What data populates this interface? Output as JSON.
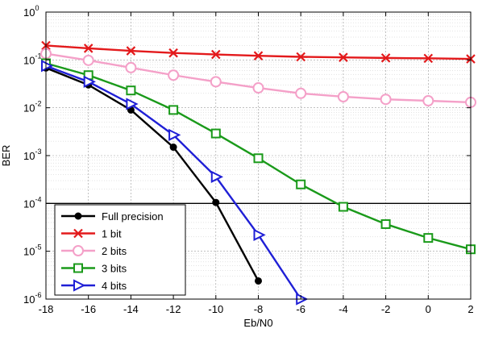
{
  "chart_data": {
    "type": "line",
    "xlabel": "Eb/N0",
    "ylabel": "BER",
    "xlim": [
      -18,
      2
    ],
    "ylim": [
      1e-06,
      1
    ],
    "yscale": "log",
    "x_ticks": [
      -18,
      -16,
      -14,
      -12,
      -10,
      -8,
      -6,
      -4,
      -2,
      0,
      2
    ],
    "y_ticks": [
      {
        "base": "10",
        "exp": "0"
      },
      {
        "base": "10",
        "exp": "-1"
      },
      {
        "base": "10",
        "exp": "-2"
      },
      {
        "base": "10",
        "exp": "-3"
      },
      {
        "base": "10",
        "exp": "-4"
      },
      {
        "base": "10",
        "exp": "-5"
      },
      {
        "base": "10",
        "exp": "-6"
      }
    ],
    "grid": true,
    "legend_position": "bottom-left",
    "reference_line": {
      "y": 0.0001,
      "color": "#000000"
    },
    "series": [
      {
        "name": "Full precision",
        "color": "#000000",
        "marker": "filled-circle",
        "x": [
          -18,
          -16,
          -14,
          -12,
          -10,
          -8
        ],
        "y": [
          0.068,
          0.03,
          0.009,
          0.0015,
          0.000105,
          2.4e-06
        ]
      },
      {
        "name": "1 bit",
        "color": "#e31a1c",
        "marker": "x",
        "x": [
          -18,
          -16,
          -14,
          -12,
          -10,
          -8,
          -6,
          -4,
          -2,
          0,
          2
        ],
        "y": [
          0.2,
          0.175,
          0.155,
          0.14,
          0.13,
          0.122,
          0.116,
          0.113,
          0.11,
          0.108,
          0.105
        ]
      },
      {
        "name": "2 bits",
        "color": "#f4a0c8",
        "marker": "open-circle",
        "x": [
          -18,
          -16,
          -14,
          -12,
          -10,
          -8,
          -6,
          -4,
          -2,
          0,
          2
        ],
        "y": [
          0.135,
          0.098,
          0.069,
          0.048,
          0.035,
          0.026,
          0.02,
          0.017,
          0.015,
          0.014,
          0.013
        ]
      },
      {
        "name": "3 bits",
        "color": "#1a9a1a",
        "marker": "open-square",
        "x": [
          -18,
          -16,
          -14,
          -12,
          -10,
          -8,
          -6,
          -4,
          -2,
          0,
          2
        ],
        "y": [
          0.085,
          0.048,
          0.023,
          0.009,
          0.0029,
          0.00088,
          0.00025,
          8.5e-05,
          3.7e-05,
          1.9e-05,
          1.1e-05
        ]
      },
      {
        "name": "4 bits",
        "color": "#1f1fd6",
        "marker": "open-triangle-right",
        "x": [
          -18,
          -16,
          -14,
          -12,
          -10,
          -8,
          -6
        ],
        "y": [
          0.075,
          0.035,
          0.012,
          0.0027,
          0.00036,
          2.2e-05,
          1e-06
        ]
      }
    ]
  }
}
